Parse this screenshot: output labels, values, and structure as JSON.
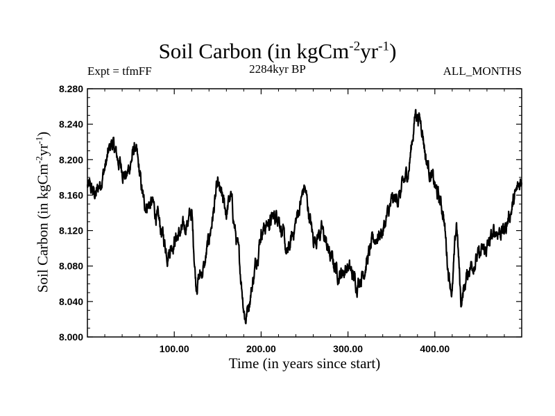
{
  "chart_data": {
    "type": "line",
    "title": "Soil Carbon (in kgCm",
    "title_exp1": "-2",
    "title_mid": "yr",
    "title_exp2": "-1",
    "title_end": ")",
    "subtitle_left": "Expt = tfmFF",
    "subtitle_center": "2284kyr BP",
    "subtitle_right": "ALL_MONTHS",
    "xlabel": "Time (in years since start)",
    "ylabel": "Soil Carbon (in kgCm",
    "ylabel_exp1": "-2",
    "ylabel_mid": "yr",
    "ylabel_exp2": "-1",
    "ylabel_end": ")",
    "xlim": [
      0,
      500
    ],
    "ylim": [
      8.0,
      8.28
    ],
    "xticks": [
      100,
      200,
      300,
      400
    ],
    "xtick_labels": [
      "100.00",
      "200.00",
      "300.00",
      "400.00"
    ],
    "yticks": [
      8.0,
      8.04,
      8.08,
      8.12,
      8.16,
      8.2,
      8.24,
      8.28
    ],
    "ytick_labels": [
      "8.000",
      "8.040",
      "8.080",
      "8.120",
      "8.160",
      "8.200",
      "8.240",
      "8.280"
    ],
    "series": [
      {
        "name": "Soil Carbon",
        "color": "#000000",
        "x": [
          0,
          10,
          20,
          28,
          35,
          45,
          55,
          65,
          75,
          85,
          92,
          100,
          110,
          120,
          125,
          135,
          140,
          150,
          160,
          165,
          170,
          175,
          180,
          182,
          190,
          200,
          210,
          220,
          230,
          240,
          250,
          260,
          270,
          280,
          290,
          300,
          310,
          318,
          330,
          340,
          350,
          360,
          370,
          378,
          385,
          390,
          400,
          410,
          415,
          420,
          425,
          430,
          440,
          450,
          460,
          470,
          480,
          490,
          500
        ],
        "y": [
          8.17,
          8.16,
          8.19,
          8.22,
          8.2,
          8.18,
          8.215,
          8.15,
          8.15,
          8.12,
          8.095,
          8.11,
          8.12,
          8.14,
          8.06,
          8.08,
          8.11,
          8.17,
          8.14,
          8.16,
          8.12,
          8.085,
          8.035,
          8.02,
          8.06,
          8.12,
          8.13,
          8.14,
          8.09,
          8.13,
          8.17,
          8.11,
          8.12,
          8.09,
          8.07,
          8.08,
          8.06,
          8.075,
          8.11,
          8.12,
          8.15,
          8.16,
          8.19,
          8.255,
          8.24,
          8.2,
          8.17,
          8.14,
          8.08,
          8.05,
          8.13,
          8.04,
          8.08,
          8.09,
          8.1,
          8.12,
          8.12,
          8.15,
          8.18
        ]
      }
    ]
  }
}
